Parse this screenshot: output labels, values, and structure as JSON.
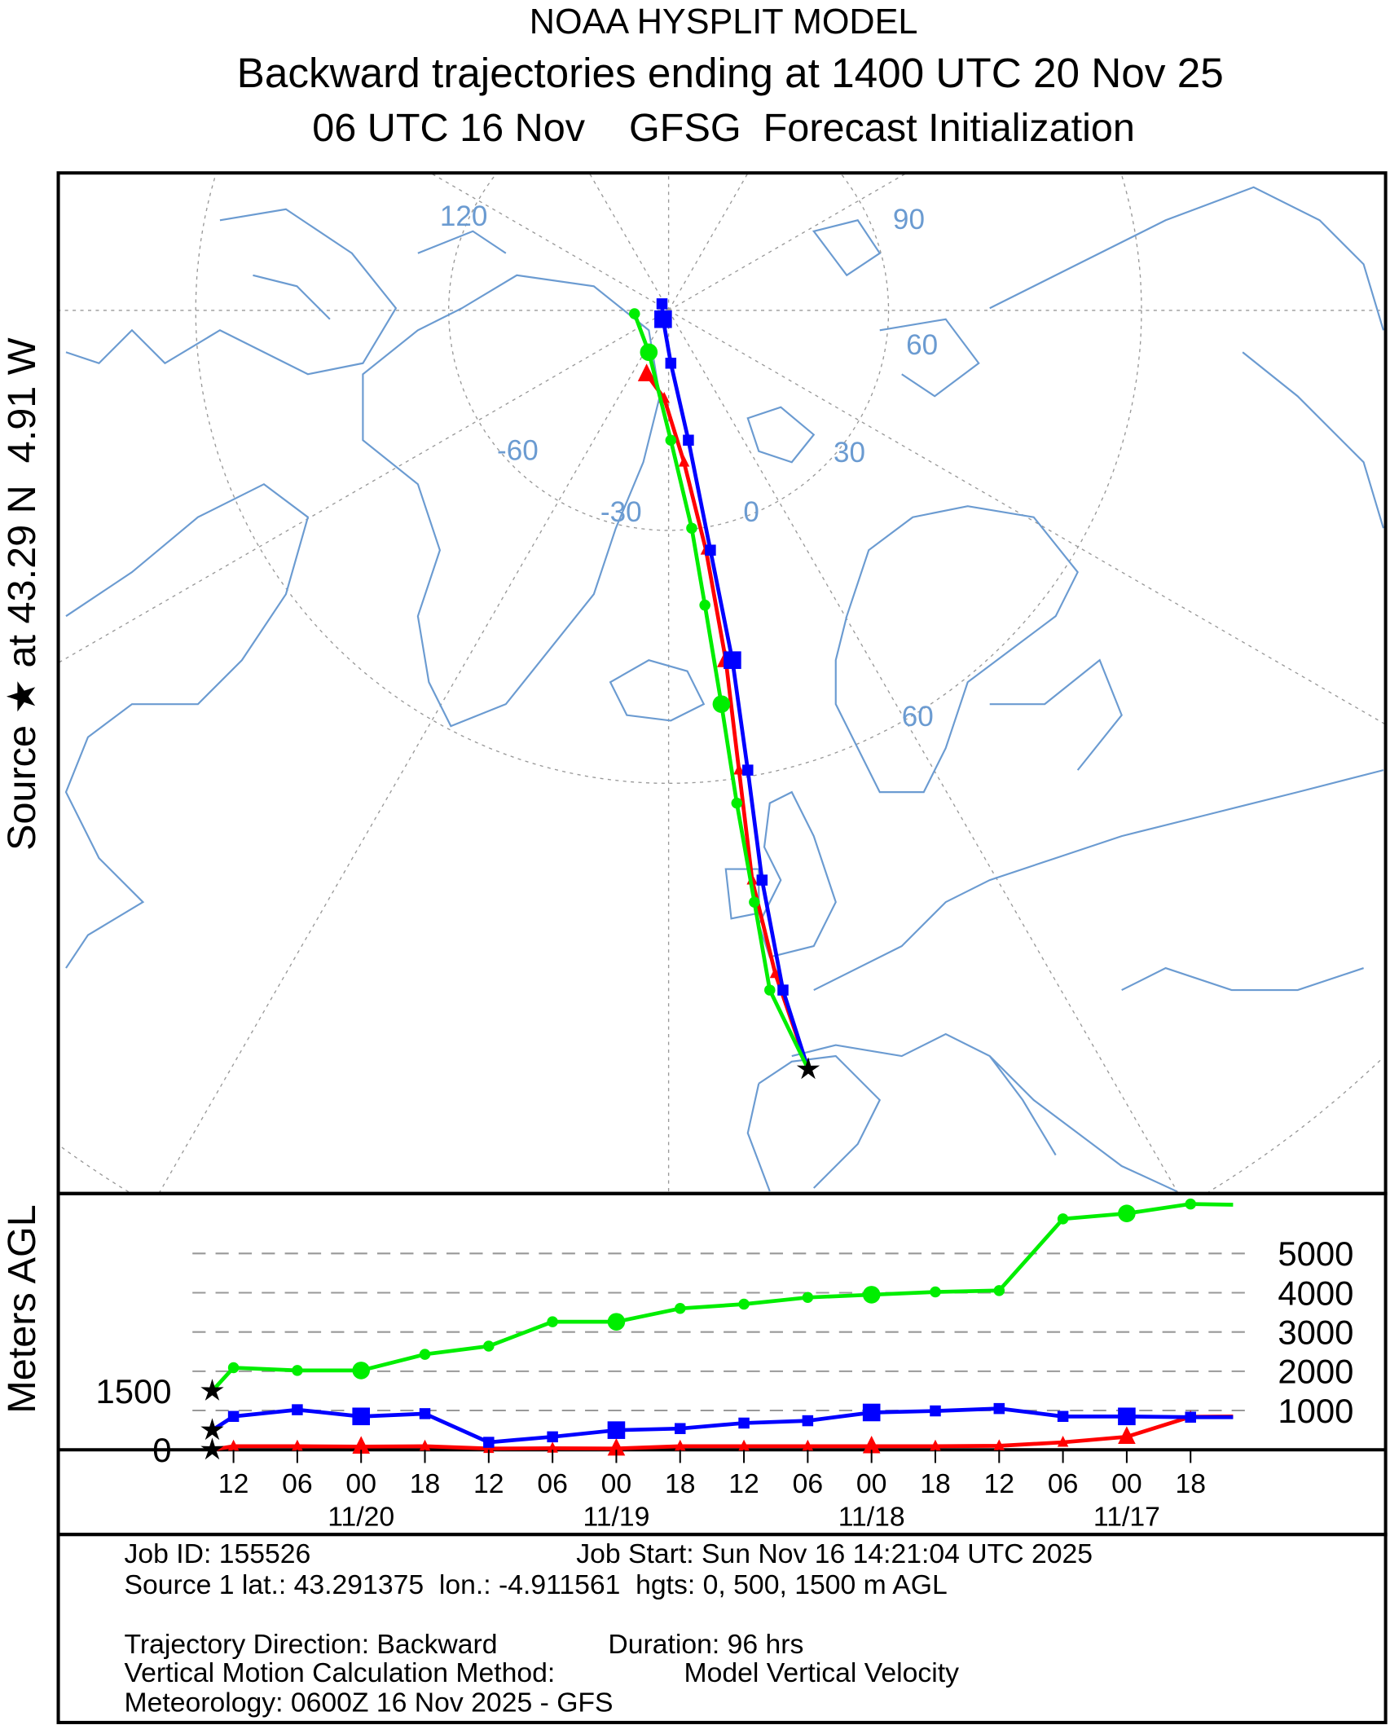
{
  "header": {
    "title": "NOAA HYSPLIT MODEL",
    "subtitle": "Backward trajectories ending at 1400 UTC 20 Nov 25",
    "subtitle2": "06 UTC 16 Nov    GFSG  Forecast Initialization"
  },
  "side_labels": {
    "source": "Source ★ at 43.29 N  4.91 W",
    "height_axis": "Meters AGL"
  },
  "map": {
    "graticule_labels": [
      "120",
      "90",
      "60",
      "-60",
      "30",
      "-30",
      "0",
      "60"
    ],
    "coast_color": "#6b9bd1"
  },
  "chart_data": {
    "type": "line",
    "ylabel": "Meters AGL",
    "x_unit": "hours backward from 1400 UTC 20 Nov",
    "x_tick_labels": [
      "12",
      "06",
      "00",
      "18",
      "12",
      "06",
      "00",
      "18",
      "12",
      "06",
      "00",
      "18",
      "12",
      "06",
      "00",
      "18"
    ],
    "x_date_labels": [
      "11/20",
      "11/19",
      "11/18",
      "11/17"
    ],
    "y_tick_labels_right": [
      "5000",
      "4000",
      "3000",
      "2000",
      "1000"
    ],
    "y_tick_labels_left": [
      "1500",
      "0"
    ],
    "ylim": [
      0,
      6500
    ],
    "grid": true,
    "hours": [
      0,
      2,
      8,
      14,
      20,
      26,
      32,
      38,
      44,
      50,
      56,
      62,
      68,
      74,
      80,
      86,
      92,
      96
    ],
    "series": [
      {
        "color": "#ff0000",
        "marker": "triangle",
        "start_height": 0,
        "values": [
          0,
          90,
          90,
          80,
          90,
          30,
          40,
          30,
          90,
          90,
          90,
          90,
          90,
          100,
          190,
          330,
          840,
          850
        ]
      },
      {
        "color": "#0000ff",
        "marker": "square",
        "start_height": 500,
        "values": [
          500,
          850,
          1020,
          850,
          920,
          190,
          330,
          500,
          540,
          680,
          740,
          950,
          990,
          1050,
          850,
          850,
          830,
          830
        ]
      },
      {
        "color": "#00ee00",
        "marker": "circle",
        "start_height": 1500,
        "values": [
          1500,
          2090,
          2020,
          2020,
          2430,
          2640,
          3260,
          3260,
          3600,
          3710,
          3880,
          3950,
          4020,
          4055,
          5880,
          6020,
          6260,
          6240
        ]
      }
    ],
    "map_tracks_color_order": [
      "#ff0000",
      "#0000ff",
      "#00ee00"
    ]
  },
  "info": {
    "job_id": "Job ID: 155526",
    "job_start": "Job Start: Sun Nov 16 14:21:04 UTC 2025",
    "source": "Source 1 lat.: 43.291375  lon.: -4.911561  hgts: 0, 500, 1500 m AGL",
    "direction": "Trajectory Direction: Backward",
    "duration": "Duration: 96 hrs",
    "vmotion": "Vertical Motion Calculation Method:",
    "vmotion_value": "Model Vertical Velocity",
    "meteorology": "Meteorology: 0600Z 16 Nov 2025 - GFS"
  }
}
